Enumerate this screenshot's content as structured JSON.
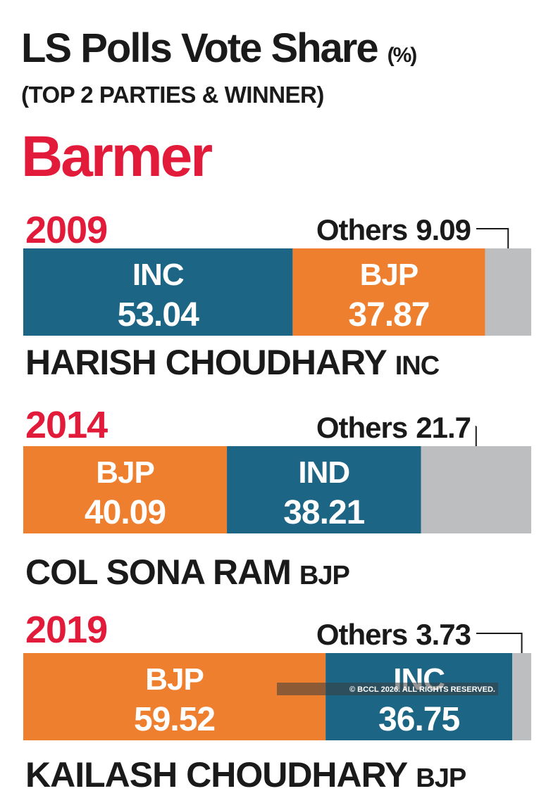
{
  "title": "LS Polls Vote Share",
  "title_unit": "(%)",
  "subtitle": "(TOP 2 PARTIES & WINNER)",
  "constituency": "Barmer",
  "watermark": "© BCCL 2026. ALL RIGHTS RESERVED.",
  "chart_data": [
    {
      "type": "bar",
      "title": "2009",
      "categories": [
        "INC",
        "BJP",
        "Others"
      ],
      "values": [
        53.04,
        37.87,
        9.09
      ],
      "colors": [
        "#1c6585",
        "#ee7f2e",
        "#bcbec0"
      ],
      "xlim": [
        0,
        100
      ],
      "winner": "HARISH CHOUDHARY",
      "winner_party": "INC"
    },
    {
      "type": "bar",
      "title": "2014",
      "categories": [
        "BJP",
        "IND",
        "Others"
      ],
      "values": [
        40.09,
        38.21,
        21.7
      ],
      "colors": [
        "#ee7f2e",
        "#1c6585",
        "#bcbec0"
      ],
      "xlim": [
        0,
        100
      ],
      "winner": "COL SONA RAM",
      "winner_party": "BJP"
    },
    {
      "type": "bar",
      "title": "2019",
      "categories": [
        "BJP",
        "INC",
        "Others"
      ],
      "values": [
        59.52,
        36.75,
        3.73
      ],
      "colors": [
        "#ee7f2e",
        "#1c6585",
        "#bcbec0"
      ],
      "xlim": [
        0,
        100
      ],
      "winner": "KAILASH CHOUDHARY",
      "winner_party": "BJP"
    }
  ]
}
